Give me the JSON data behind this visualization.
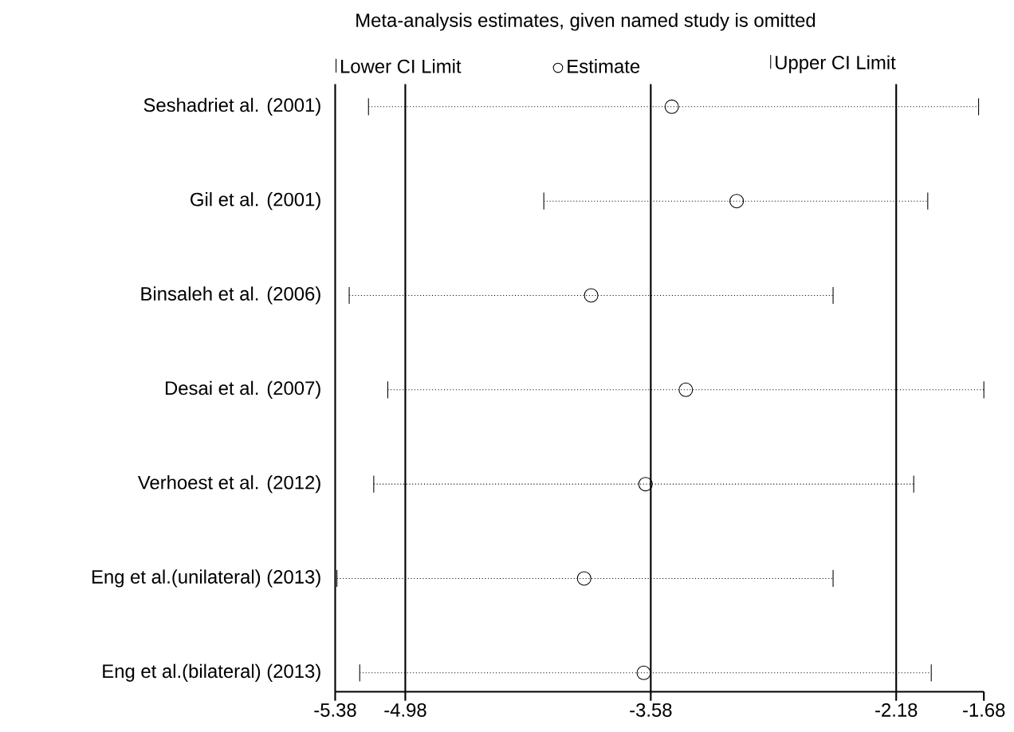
{
  "chart_data": {
    "type": "scatter",
    "orientation": "horizontal",
    "title": "Meta-analysis estimates, given named study is omitted",
    "categories": [
      "Seshadriet al. (2001)",
      "Gil et al. (2001)",
      "Binsaleh et al. (2006)",
      "Desai et al. (2007)",
      "Verhoest et al.  (2012)",
      "Eng et al.(unilateral) (2013)",
      "Eng et al.(bilateral) (2013)"
    ],
    "series": [
      {
        "name": "Estimate",
        "color": "#000000",
        "marker": "circle",
        "line_style": "dotted",
        "values": [
          -3.46,
          -3.09,
          -3.92,
          -3.38,
          -3.61,
          -3.96,
          -3.62
        ],
        "errors": [
          [
            -5.19,
            -1.71
          ],
          [
            -4.19,
            -2.0
          ],
          [
            -5.3,
            -2.54
          ],
          [
            -5.08,
            -1.68
          ],
          [
            -5.16,
            -2.08
          ],
          [
            -5.37,
            -2.54
          ],
          [
            -5.24,
            -1.98
          ]
        ]
      }
    ],
    "annotations": [
      "Lower CI Limit",
      "Upper CI Limit"
    ],
    "xlim": [
      -5.38,
      -1.68
    ],
    "xticks": [
      -5.38,
      -4.98,
      -3.58,
      -2.18,
      -1.68
    ],
    "ref_lines": [
      {
        "axis": "x",
        "value": -4.98
      },
      {
        "axis": "x",
        "value": -3.58
      },
      {
        "axis": "x",
        "value": -2.18
      }
    ],
    "legend": "top"
  }
}
